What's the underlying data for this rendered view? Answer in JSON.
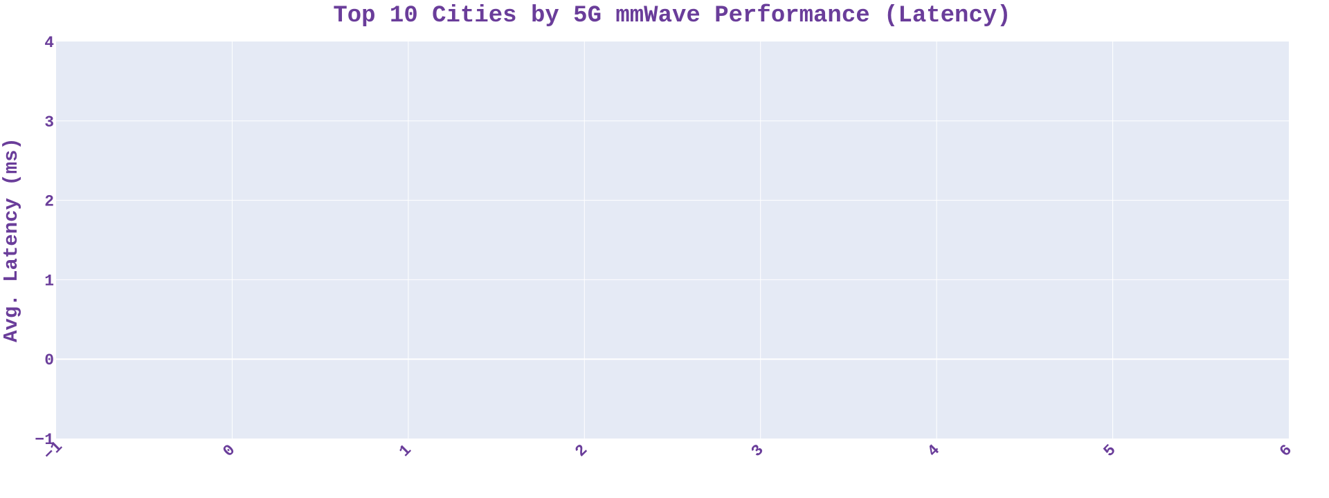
{
  "chart_data": {
    "type": "bar",
    "title": "Top 10 Cities by 5G mmWave Performance (Latency)",
    "xlabel": "",
    "ylabel": "Avg. Latency (ms)",
    "xlim": [
      -1,
      6
    ],
    "ylim": [
      -1,
      4
    ],
    "x_ticks": [
      "−1",
      "0",
      "1",
      "2",
      "3",
      "4",
      "5",
      "6"
    ],
    "y_ticks": [
      "−1",
      "0",
      "1",
      "2",
      "3",
      "4"
    ],
    "categories": [],
    "values": [],
    "grid": true,
    "legend": "none",
    "colors": {
      "text": "#6a3d9a",
      "plot_background": "#e5eaf5",
      "grid": "#ffffff"
    }
  }
}
